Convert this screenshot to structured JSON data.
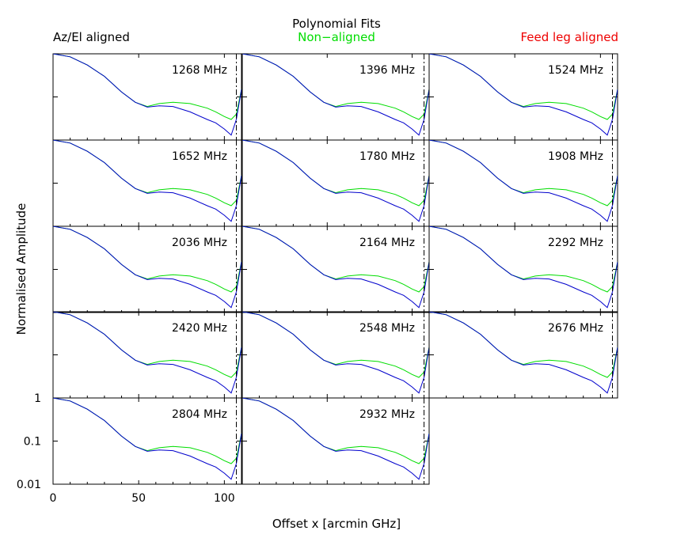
{
  "chart_data": {
    "type": "line",
    "title": "Polynomial Fits",
    "legend": [
      {
        "name": "Az/El aligned",
        "color": "#000000",
        "placement": "top-left"
      },
      {
        "name": "Non−aligned",
        "color": "#00dd00",
        "placement": "top-center"
      },
      {
        "name": "Feed leg aligned",
        "color": "#ee0000",
        "placement": "top-right"
      }
    ],
    "xlabel": "Offset x [arcmin GHz]",
    "ylabel": "Normalised Amplitude",
    "xlim": [
      0,
      110
    ],
    "ylim": [
      0.01,
      1
    ],
    "yscale": "log",
    "x_ticks": [
      "0",
      "50",
      "100"
    ],
    "y_ticks": [
      "1",
      "0.1",
      "0.01"
    ],
    "colors": {
      "blue_fit": "#0000cc",
      "green_fit": "#00dd00",
      "vline": "#000000"
    },
    "vline_x": 107,
    "panels": [
      {
        "label": "1268 MHz"
      },
      {
        "label": "1396 MHz"
      },
      {
        "label": "1524 MHz"
      },
      {
        "label": "1652 MHz"
      },
      {
        "label": "1780 MHz"
      },
      {
        "label": "1908 MHz"
      },
      {
        "label": "2036 MHz"
      },
      {
        "label": "2164 MHz"
      },
      {
        "label": "2292 MHz"
      },
      {
        "label": "2420 MHz"
      },
      {
        "label": "2548 MHz"
      },
      {
        "label": "2676 MHz"
      },
      {
        "label": "2804 MHz"
      },
      {
        "label": "2932 MHz"
      }
    ],
    "series_fit_blue": {
      "x": [
        0,
        10,
        20,
        30,
        40,
        48,
        55,
        62,
        70,
        80,
        90,
        95,
        100,
        104,
        107,
        110
      ],
      "y": [
        1.0,
        0.85,
        0.55,
        0.3,
        0.13,
        0.075,
        0.058,
        0.062,
        0.06,
        0.045,
        0.03,
        0.025,
        0.018,
        0.013,
        0.03,
        0.15
      ]
    },
    "series_fit_green": {
      "x": [
        0,
        10,
        20,
        30,
        40,
        48,
        55,
        62,
        70,
        80,
        90,
        95,
        100,
        104,
        107,
        110
      ],
      "y": [
        1.0,
        0.85,
        0.55,
        0.3,
        0.13,
        0.075,
        0.06,
        0.07,
        0.075,
        0.07,
        0.055,
        0.045,
        0.035,
        0.03,
        0.04,
        0.15
      ]
    }
  }
}
